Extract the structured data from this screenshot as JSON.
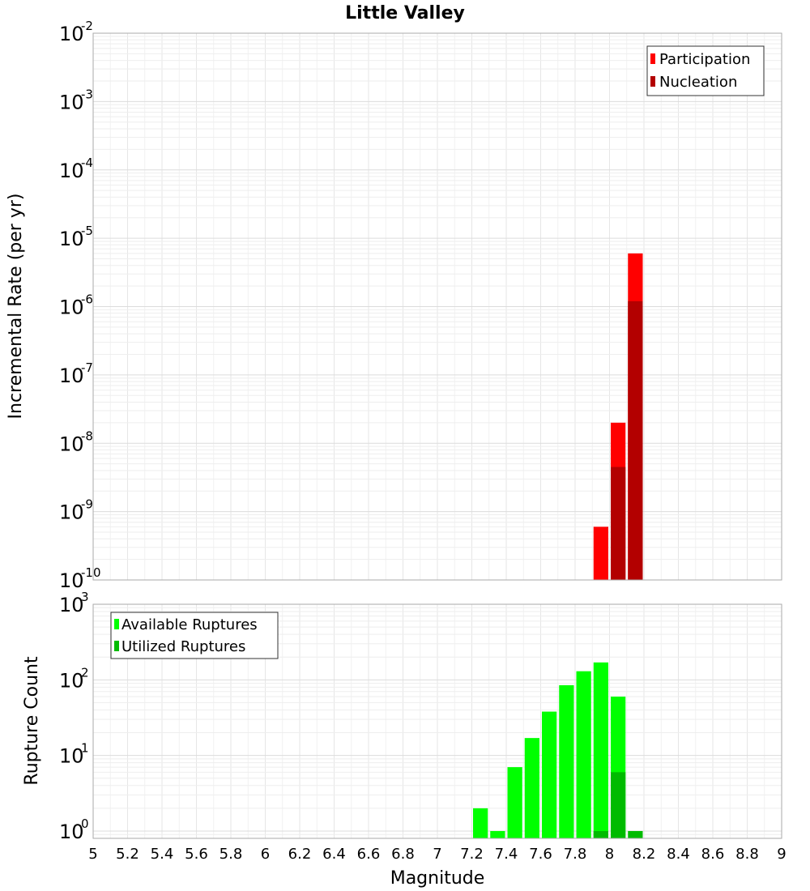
{
  "chart_data": [
    {
      "type": "bar",
      "title": "Little Valley",
      "ylabel": "Incremental Rate (per yr)",
      "xlabel": "",
      "yscale": "log",
      "ylim": [
        1e-10,
        0.01
      ],
      "xlim": [
        5,
        9
      ],
      "grid": true,
      "legend_position": "top-right",
      "y_ticks": [
        {
          "base": "10",
          "exp": "-2"
        },
        {
          "base": "10",
          "exp": "-3"
        },
        {
          "base": "10",
          "exp": "-4"
        },
        {
          "base": "10",
          "exp": "-5"
        },
        {
          "base": "10",
          "exp": "-6"
        },
        {
          "base": "10",
          "exp": "-7"
        },
        {
          "base": "10",
          "exp": "-8"
        },
        {
          "base": "10",
          "exp": "-9"
        },
        {
          "base": "10",
          "exp": "-10"
        }
      ],
      "series": [
        {
          "name": "Participation",
          "color": "#ff0000",
          "x": [
            7.95,
            8.05,
            8.15
          ],
          "values": [
            6e-10,
            2e-08,
            6e-06
          ]
        },
        {
          "name": "Nucleation",
          "color": "#b30000",
          "x": [
            8.05,
            8.15
          ],
          "values": [
            4.5e-09,
            1.2e-06
          ]
        }
      ]
    },
    {
      "type": "bar",
      "title": "",
      "ylabel": "Rupture Count",
      "xlabel": "Magnitude",
      "yscale": "log",
      "ylim": [
        0.8,
        1000
      ],
      "xlim": [
        5,
        9
      ],
      "grid": true,
      "legend_position": "top-left",
      "y_ticks": [
        {
          "base": "10",
          "exp": "3"
        },
        {
          "base": "10",
          "exp": "2"
        },
        {
          "base": "10",
          "exp": "1"
        },
        {
          "base": "10",
          "exp": "0"
        }
      ],
      "x_tick_labels": [
        "5",
        "5.2",
        "5.4",
        "5.6",
        "5.8",
        "6",
        "6.2",
        "6.4",
        "6.6",
        "6.8",
        "7",
        "7.2",
        "7.4",
        "7.6",
        "7.8",
        "8",
        "8.2",
        "8.4",
        "8.6",
        "8.8",
        "9"
      ],
      "series": [
        {
          "name": "Available Ruptures",
          "color": "#00ff00",
          "x": [
            7.25,
            7.35,
            7.45,
            7.55,
            7.65,
            7.75,
            7.85,
            7.95,
            8.05
          ],
          "values": [
            2,
            1,
            7,
            17,
            38,
            85,
            130,
            170,
            60
          ]
        },
        {
          "name": "Utilized Ruptures",
          "color": "#00bb00",
          "x": [
            7.95,
            8.05,
            8.15
          ],
          "values": [
            1,
            6,
            1
          ]
        }
      ]
    }
  ]
}
